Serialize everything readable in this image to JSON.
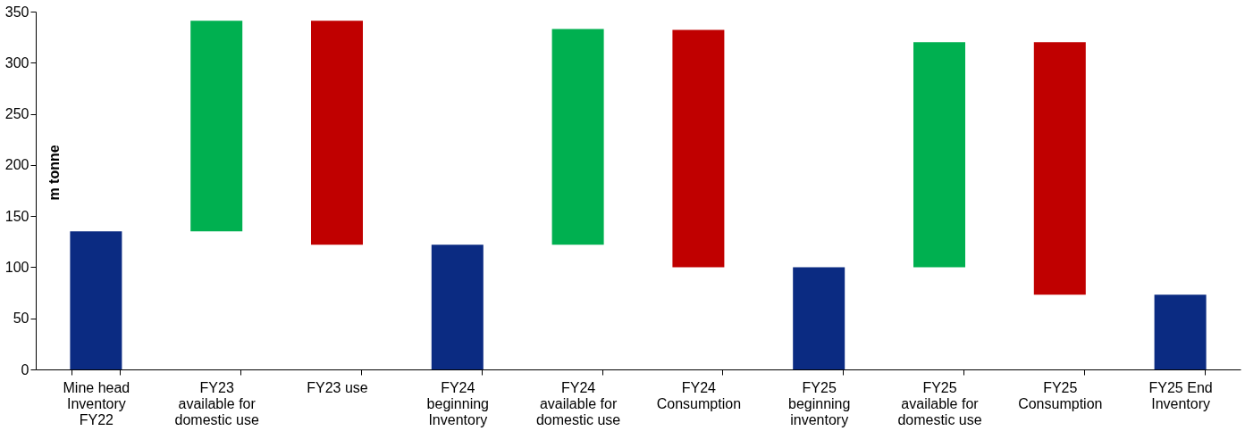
{
  "chart_data": {
    "type": "bar",
    "ylabel": "m tonne",
    "categories": [
      "Mine head Inventory FY22",
      "FY23 available for domestic use",
      "FY23 use",
      "FY24 beginning Inventory",
      "FY24 available for domestic use",
      "FY24 Consumption",
      "FY25 beginning inventory",
      "FY25 available for domestic use",
      "FY25 Consumption",
      "FY25 End Inventory"
    ],
    "base": [
      0,
      135,
      122,
      0,
      122,
      100,
      0,
      100,
      73,
      0
    ],
    "values": [
      135,
      206,
      219,
      122,
      211,
      232,
      100,
      220,
      247,
      73
    ],
    "colors": [
      "#0b2b82",
      "#00b050",
      "#c00000",
      "#0b2b82",
      "#00b050",
      "#c00000",
      "#0b2b82",
      "#00b050",
      "#c00000",
      "#0b2b82"
    ],
    "ylim": [
      0,
      350
    ],
    "yticks": [
      0,
      50,
      100,
      150,
      200,
      250,
      300,
      350
    ],
    "grid": false
  }
}
